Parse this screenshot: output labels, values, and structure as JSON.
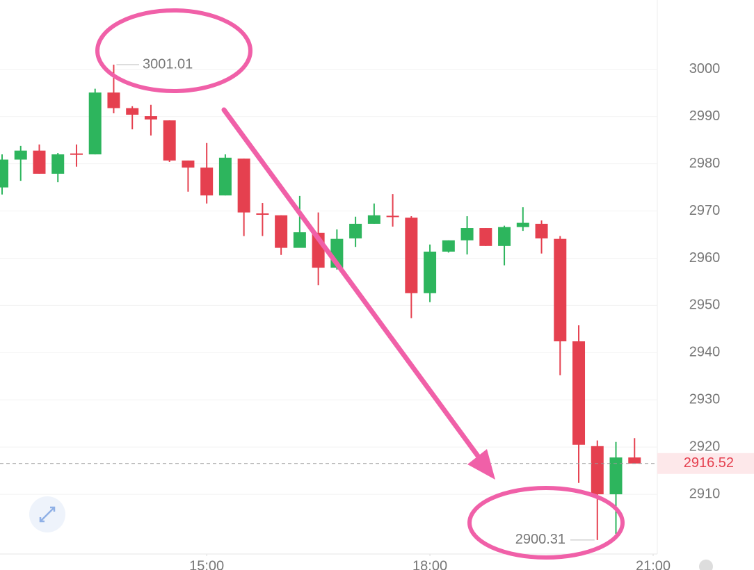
{
  "chart_data": {
    "type": "candlestick",
    "open": [
      2975.0,
      2980.9,
      2982.8,
      2977.9,
      2982.2,
      2982.0,
      2995.1,
      2991.8,
      2990.1,
      2989.2,
      2980.7,
      2979.2,
      2973.3,
      2981.1,
      2969.5,
      2969.1,
      2962.2,
      2965.4,
      2958.0,
      2964.2,
      2967.3,
      2969.0,
      2968.6,
      2952.6,
      2961.4,
      2963.8,
      2966.4,
      2962.6,
      2966.6,
      2967.3,
      2964.1,
      2942.4,
      2920.2,
      2910.0,
      2917.8
    ],
    "high": [
      2982.0,
      2983.8,
      2984.1,
      2982.3,
      2984.1,
      2995.9,
      3001.01,
      2992.2,
      2992.5,
      2989.2,
      2980.7,
      2984.4,
      2982.0,
      2981.1,
      2971.7,
      2969.1,
      2973.2,
      2969.7,
      2966.1,
      2968.8,
      2971.6,
      2973.6,
      2968.9,
      2962.9,
      2963.8,
      2968.9,
      2966.4,
      2966.9,
      2970.8,
      2968.0,
      2964.7,
      2945.8,
      2921.4,
      2921.1,
      2921.9
    ],
    "low": [
      2973.5,
      2976.4,
      2977.9,
      2976.1,
      2979.4,
      2982.0,
      2990.7,
      2987.3,
      2986.0,
      2980.4,
      2974.1,
      2971.6,
      2973.3,
      2964.7,
      2964.7,
      2960.7,
      2962.2,
      2954.3,
      2957.6,
      2962.4,
      2967.3,
      2966.7,
      2947.3,
      2950.7,
      2961.2,
      2960.8,
      2962.6,
      2958.5,
      2965.8,
      2961.0,
      2935.2,
      2912.4,
      2900.31,
      2901.6,
      2916.52
    ],
    "close": [
      2980.9,
      2982.8,
      2977.9,
      2982.0,
      2982.0,
      2995.1,
      2991.8,
      2990.4,
      2989.4,
      2980.7,
      2979.2,
      2973.3,
      2981.3,
      2969.7,
      2969.2,
      2962.2,
      2965.5,
      2958.0,
      2964.1,
      2967.3,
      2969.1,
      2968.8,
      2952.6,
      2961.4,
      2963.8,
      2966.4,
      2962.6,
      2966.6,
      2967.5,
      2964.2,
      2942.4,
      2920.5,
      2910.0,
      2917.8,
      2916.52
    ],
    "up_color": "#2db55d",
    "down_color": "#e5404f",
    "xlim": [
      0,
      35
    ],
    "xticks": [
      {
        "value": 11,
        "label": "15:00"
      },
      {
        "value": 23,
        "label": "18:00"
      },
      {
        "value": 35,
        "label": "21:00"
      }
    ],
    "ylim": [
      2897.35,
      3014.7
    ],
    "yticks": [
      2910,
      2920,
      2930,
      2940,
      2950,
      2960,
      2970,
      2980,
      2990,
      3000
    ],
    "grid": true
  }
}
